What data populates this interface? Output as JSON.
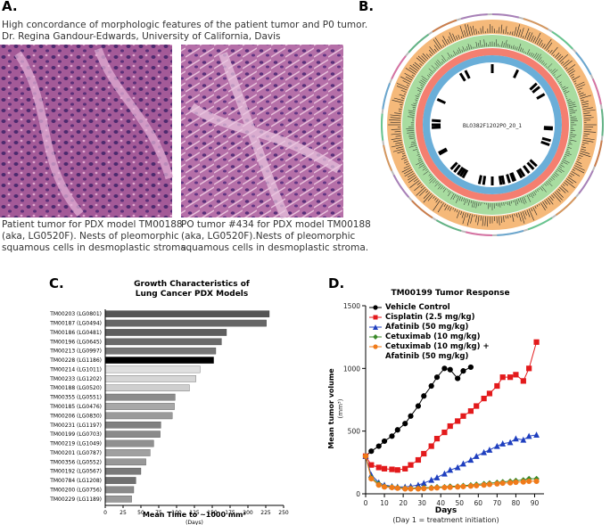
{
  "panel_a": {
    "label": "A.",
    "heading": "High concordance of morphologic features of the patient tumor and P0 tumor.",
    "credit": "Dr. Regina Gandour-Edwards, University of California, Davis",
    "caption_left": [
      "Patient tumor for PDX model TM00188",
      "(aka, LG0520F). Nests of pleomorphic",
      "squamous cells in desmoplastic stroma."
    ],
    "caption_right": [
      "PO tumor #434 for PDX model TM00188",
      "(aka, LG0520F).Nests of pleomorphic",
      "squamous cells in desmoplastic stroma."
    ]
  },
  "panel_b": {
    "label": "B.",
    "center_label": "BL0382F1202P0_20_1"
  },
  "chart_data": [
    {
      "type": "bar",
      "label": "C.",
      "title": [
        "Growth Characteristics of",
        "Lung Cancer PDX Models"
      ],
      "x_label": "Mean Time to ~1000 mm³",
      "x_sublabel": "(Days)",
      "categories": [
        "TM00203 (LG0801)",
        "TM00187 (LG0494)",
        "TM00186 (LG0481)",
        "TM00196 (LG0645)",
        "TM00213 (LG0997)",
        "TM00228 (LG1186)",
        "TM00214 (LG1011)",
        "TM00233 (LG1202)",
        "TM00188 (LG0520)",
        "TM00355 (LG0551)",
        "TM00185 (LG0476)",
        "TM00206 (LG0830)",
        "TM00231 (LG1197)",
        "TM00199 (LG0703)",
        "TM00219 (LG1049)",
        "TM00201 (LG0787)",
        "TM00356 (LG0552)",
        "TM00192 (LG0567)",
        "TM00784 (LG1208)",
        "TM00200 (LG0756)",
        "TM00229 (LG1189)"
      ],
      "values": [
        230,
        226,
        170,
        163,
        155,
        152,
        133,
        127,
        118,
        98,
        97,
        94,
        78,
        77,
        68,
        63,
        57,
        50,
        43,
        40,
        37
      ],
      "colors": [
        "#555",
        "#666",
        "#5e5e5e",
        "#6a6a6a",
        "#777",
        "#000",
        "#e0e0e0",
        "#d6d6d6",
        "#cfcfcf",
        "#8c8c8c",
        "#a8a8a8",
        "#9a9a9a",
        "#808080",
        "#8a8a8a",
        "#909090",
        "#a0a0a0",
        "#989898",
        "#7a7a7a",
        "#707070",
        "#8a8a8a",
        "#9a9a9a"
      ],
      "xlim": [
        0,
        250
      ],
      "xticks": [
        0,
        25,
        50,
        75,
        100,
        125,
        150,
        175,
        200,
        225,
        250
      ]
    },
    {
      "type": "line",
      "label": "D.",
      "title": "TM00199 Tumor  Response",
      "x_label": "Days",
      "x_sublabel": "(Day 1 = treatment initiation)",
      "y_label": "Mean tumor volume",
      "y_unit": "(mm³)",
      "xlim": [
        0,
        95
      ],
      "xticks": [
        0,
        10,
        20,
        30,
        40,
        50,
        60,
        70,
        80,
        90
      ],
      "ylim": [
        0,
        1500
      ],
      "yticks": [
        0,
        500,
        1000,
        1500
      ],
      "series": [
        {
          "name": "Vehicle Control",
          "color": "#000000",
          "marker": "circle",
          "x": [
            0,
            3,
            7,
            10,
            14,
            17,
            21,
            24,
            28,
            31,
            35,
            38,
            42,
            45,
            49,
            52,
            56
          ],
          "values": [
            300,
            340,
            380,
            420,
            460,
            510,
            560,
            620,
            700,
            780,
            860,
            930,
            1000,
            990,
            920,
            980,
            1010
          ]
        },
        {
          "name": "Cisplatin (2.5 mg/kg)",
          "color": "#e31a1c",
          "marker": "square",
          "x": [
            0,
            3,
            7,
            10,
            14,
            17,
            21,
            24,
            28,
            31,
            35,
            38,
            42,
            45,
            49,
            52,
            56,
            59,
            63,
            66,
            70,
            73,
            77,
            80,
            84,
            87,
            91
          ],
          "values": [
            300,
            230,
            210,
            200,
            195,
            190,
            200,
            230,
            270,
            320,
            380,
            440,
            490,
            540,
            580,
            620,
            660,
            700,
            760,
            800,
            860,
            930,
            930,
            950,
            900,
            1000,
            1210
          ]
        },
        {
          "name": "Afatinib (50 mg/kg)",
          "color": "#1f3fbf",
          "marker": "triangle",
          "x": [
            0,
            3,
            7,
            10,
            14,
            17,
            21,
            24,
            28,
            31,
            35,
            38,
            42,
            45,
            49,
            52,
            56,
            59,
            63,
            66,
            70,
            73,
            77,
            80,
            84,
            87,
            91
          ],
          "values": [
            300,
            150,
            90,
            70,
            60,
            55,
            55,
            60,
            70,
            85,
            110,
            130,
            160,
            190,
            210,
            240,
            270,
            300,
            330,
            350,
            380,
            400,
            410,
            440,
            430,
            460,
            470
          ]
        },
        {
          "name": "Cetuximab (10 mg/kg)",
          "color": "#3a8a2a",
          "marker": "diamond",
          "x": [
            0,
            3,
            7,
            10,
            14,
            17,
            21,
            24,
            28,
            31,
            35,
            38,
            42,
            45,
            49,
            52,
            56,
            59,
            63,
            66,
            70,
            73,
            77,
            80,
            84,
            87,
            91
          ],
          "values": [
            300,
            130,
            80,
            60,
            55,
            50,
            45,
            45,
            45,
            50,
            50,
            55,
            55,
            60,
            60,
            65,
            70,
            75,
            80,
            85,
            90,
            95,
            100,
            105,
            110,
            120,
            120
          ]
        },
        {
          "name": "Cetuximab (10 mg/kg) + Afatinib (50 mg/kg)",
          "color": "#f07b1a",
          "marker": "circle",
          "x": [
            0,
            3,
            7,
            10,
            14,
            17,
            21,
            24,
            28,
            31,
            35,
            38,
            42,
            45,
            49,
            52,
            56,
            59,
            63,
            66,
            70,
            73,
            77,
            80,
            84,
            87,
            91
          ],
          "values": [
            300,
            120,
            70,
            55,
            50,
            45,
            40,
            40,
            40,
            42,
            45,
            48,
            50,
            52,
            55,
            58,
            62,
            65,
            70,
            75,
            80,
            85,
            88,
            92,
            95,
            100,
            100
          ]
        }
      ]
    }
  ]
}
